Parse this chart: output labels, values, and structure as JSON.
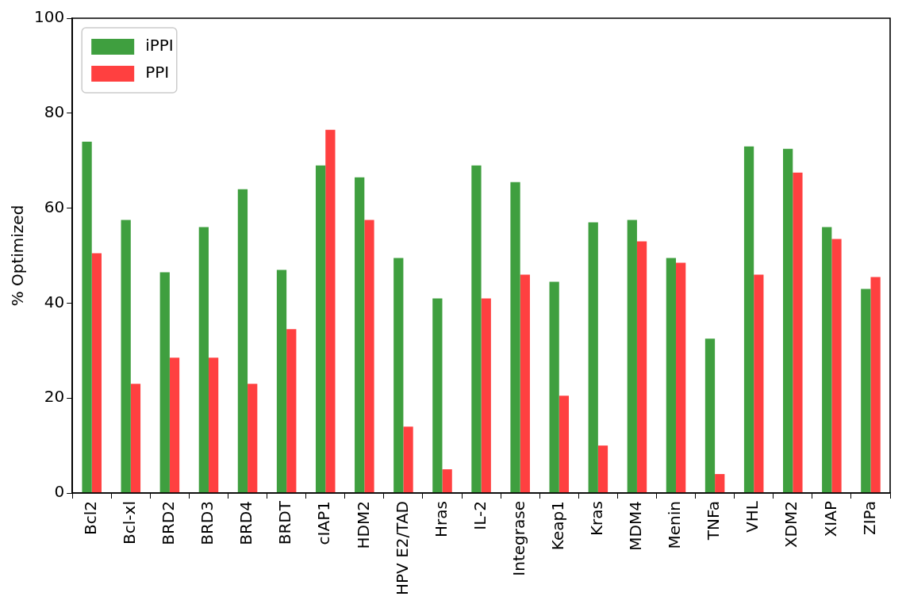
{
  "chart_data": {
    "type": "bar",
    "ylabel": "% Optimized",
    "categories": [
      "Bcl2",
      "Bcl-xl",
      "BRD2",
      "BRD3",
      "BRD4",
      "BRDT",
      "cIAP1",
      "HDM2",
      "HPV E2/TAD",
      "Hras",
      "IL-2",
      "Integrase",
      "Keap1",
      "Kras",
      "MDM4",
      "Menin",
      "TNFa",
      "VHL",
      "XDM2",
      "XIAP",
      "ZIPa"
    ],
    "series": [
      {
        "name": "iPPI",
        "color": "#3f9f3f",
        "values": [
          74,
          57.5,
          46.5,
          56,
          64,
          47,
          69,
          66.5,
          49.5,
          41,
          69,
          65.5,
          44.5,
          57,
          57.5,
          49.5,
          32.5,
          73,
          72.5,
          56,
          43
        ]
      },
      {
        "name": "PPI",
        "color": "#ff4040",
        "values": [
          50.5,
          23,
          28.5,
          28.5,
          23,
          34.5,
          76.5,
          57.5,
          14,
          5,
          41,
          46,
          20.5,
          10,
          53,
          48.5,
          4,
          46,
          67.5,
          53.5,
          45.5
        ]
      }
    ],
    "ylim": [
      0,
      100
    ],
    "yticks": [
      0,
      20,
      40,
      60,
      80,
      100
    ],
    "grid": false,
    "legend": "top left"
  }
}
